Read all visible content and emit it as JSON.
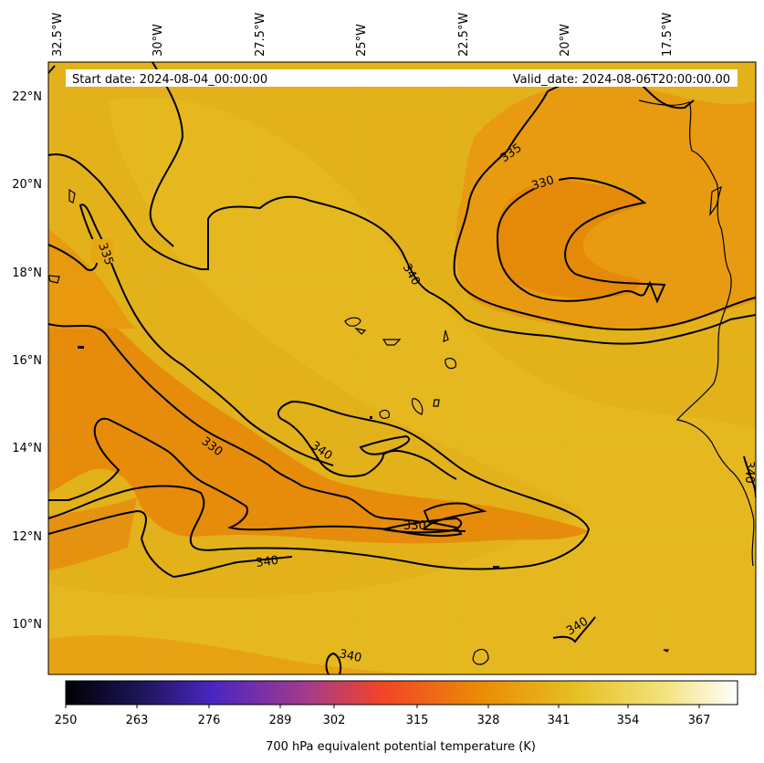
{
  "header": {
    "start_date": "Start date: 2024-08-04_00:00:00",
    "valid_date": "Valid_date: 2024-08-06T20:00:00.00"
  },
  "map": {
    "variable": "700 hPa equivalent potential temperature (K)",
    "longitude_labels": [
      "32.5°W",
      "30°W",
      "27.5°W",
      "25°W",
      "22.5°W",
      "20°W",
      "17.5°W"
    ],
    "latitude_labels": [
      "22°N",
      "20°N",
      "18°N",
      "16°N",
      "14°N",
      "12°N",
      "10°N"
    ],
    "lon_range": [
      -32.5,
      -15.2
    ],
    "lat_range": [
      8.9,
      22.8
    ],
    "contour_labels": [
      "335",
      "330",
      "340",
      "335",
      "330",
      "340",
      "330",
      "340",
      "340",
      "340",
      "340"
    ],
    "colors": {
      "background_field": "#e3b11a",
      "warm_region": "#e58e0b",
      "contour": "#000000"
    }
  },
  "colorbar": {
    "label": "700 hPa equivalent potential temperature (K)",
    "ticks": [
      "250",
      "263",
      "276",
      "289",
      "302",
      "315",
      "328",
      "341",
      "354",
      "367"
    ],
    "range": [
      250,
      372
    ],
    "colormap_stops": [
      "#000004",
      "#1d1556",
      "#4a26c2",
      "#a43b8a",
      "#f24427",
      "#ea8c05",
      "#e6c024",
      "#f3e27c",
      "#ffffff"
    ]
  }
}
